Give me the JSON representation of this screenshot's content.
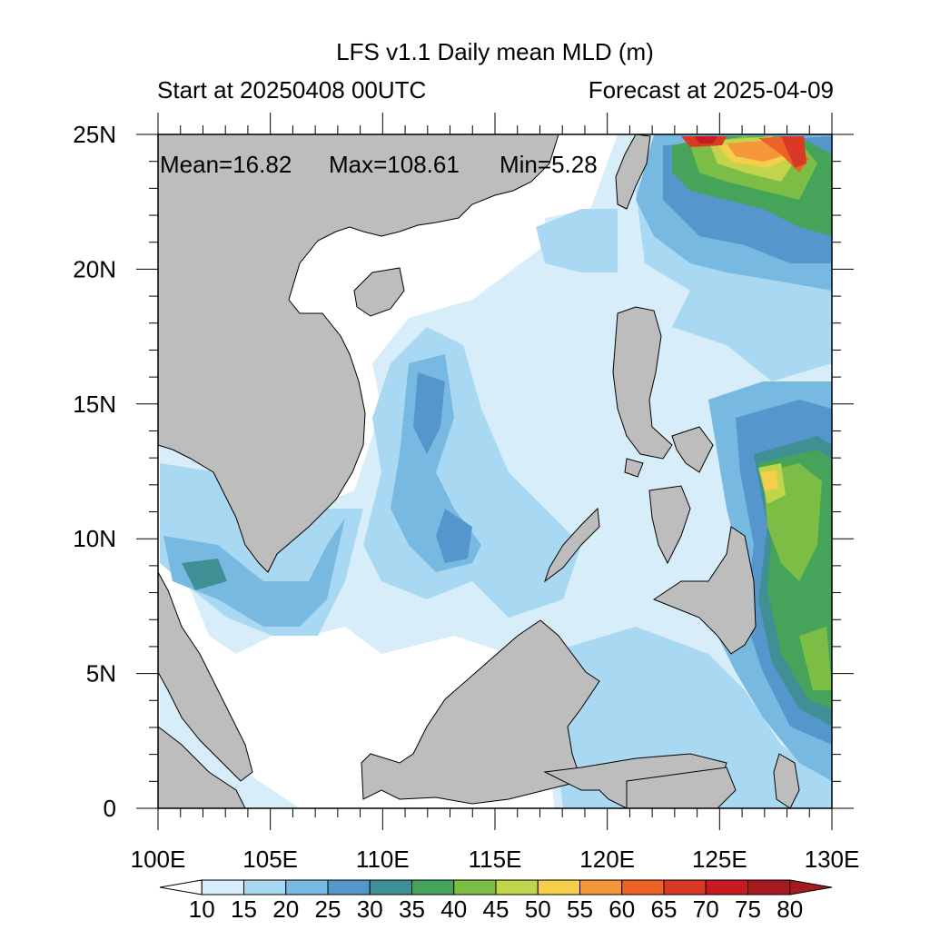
{
  "title": "LFS v1.1 Daily mean MLD (m)",
  "start_label": "Start at 20250408 00UTC",
  "forecast_label": "Forecast at 2025-04-09",
  "stats": {
    "mean": "Mean=16.82",
    "max": "Max=108.61",
    "min": "Min=5.28"
  },
  "extent": {
    "lon": [
      100,
      130
    ],
    "lat": [
      0,
      25
    ]
  },
  "lon_ticks": [
    "100E",
    "105E",
    "110E",
    "115E",
    "120E",
    "125E",
    "130E"
  ],
  "lat_ticks": [
    "0",
    "5N",
    "10N",
    "15N",
    "20N",
    "25N"
  ],
  "colorbar": {
    "labels": [
      "10",
      "15",
      "20",
      "25",
      "30",
      "35",
      "40",
      "45",
      "50",
      "55",
      "60",
      "65",
      "70",
      "75",
      "80"
    ],
    "colors": [
      "#ffffff",
      "#d7eefa",
      "#a8d8f2",
      "#78b9e2",
      "#5596cc",
      "#3f8f94",
      "#45a45a",
      "#7cbd45",
      "#c2d44c",
      "#f5cf4a",
      "#f4963a",
      "#ed6227",
      "#d83a26",
      "#c91a22",
      "#a51a1f",
      "#a51a1f"
    ]
  },
  "colors": {
    "land": "#bdbdbd",
    "ocean_base": "#ffffff"
  }
}
